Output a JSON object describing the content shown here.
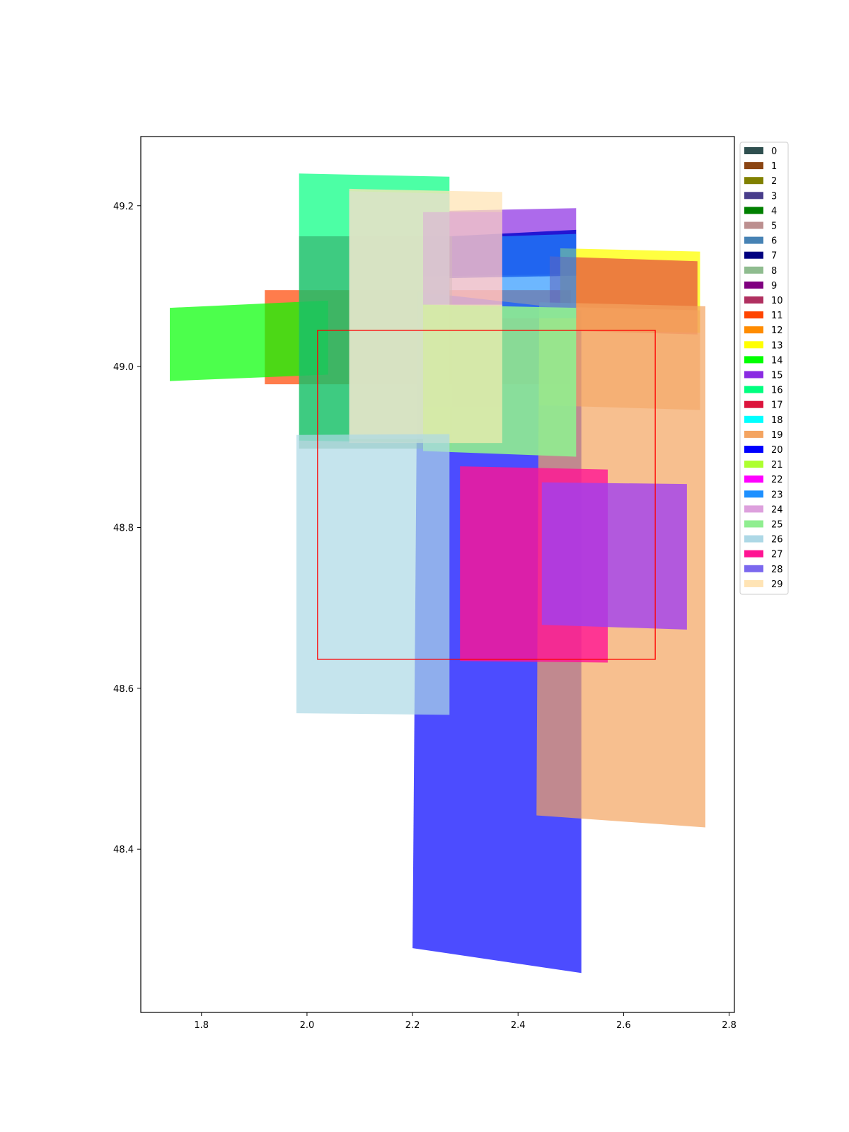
{
  "chart_data": {
    "type": "area",
    "title": "",
    "xlabel": "",
    "ylabel": "",
    "xlim": [
      1.685,
      2.81
    ],
    "ylim": [
      48.197,
      49.286
    ],
    "x_ticks": [
      "1.8",
      "2.0",
      "2.2",
      "2.4",
      "2.6",
      "2.8"
    ],
    "x_tick_values": [
      1.8,
      2.0,
      2.2,
      2.4,
      2.6,
      2.8
    ],
    "y_ticks": [
      "48.4",
      "48.6",
      "48.8",
      "49.0",
      "49.2"
    ],
    "y_tick_values": [
      48.4,
      48.6,
      48.8,
      49.0,
      49.2
    ],
    "grid": false,
    "legend_position": "outside-right-top",
    "legend": [
      {
        "label": "0",
        "color": "#2f4f4f"
      },
      {
        "label": "1",
        "color": "#8b4513"
      },
      {
        "label": "2",
        "color": "#808000"
      },
      {
        "label": "3",
        "color": "#483d8b"
      },
      {
        "label": "4",
        "color": "#008000"
      },
      {
        "label": "5",
        "color": "#bc8f8f"
      },
      {
        "label": "6",
        "color": "#4682b4"
      },
      {
        "label": "7",
        "color": "#000080"
      },
      {
        "label": "8",
        "color": "#8fbc8f"
      },
      {
        "label": "9",
        "color": "#800080"
      },
      {
        "label": "10",
        "color": "#b03060"
      },
      {
        "label": "11",
        "color": "#ff4500"
      },
      {
        "label": "12",
        "color": "#ff8c00"
      },
      {
        "label": "13",
        "color": "#ffff00"
      },
      {
        "label": "14",
        "color": "#00ff00"
      },
      {
        "label": "15",
        "color": "#8a2be2"
      },
      {
        "label": "16",
        "color": "#00ff7f"
      },
      {
        "label": "17",
        "color": "#dc143c"
      },
      {
        "label": "18",
        "color": "#00ffff"
      },
      {
        "label": "19",
        "color": "#f4a460"
      },
      {
        "label": "20",
        "color": "#0000ff"
      },
      {
        "label": "21",
        "color": "#adff2f"
      },
      {
        "label": "22",
        "color": "#ff00ff"
      },
      {
        "label": "23",
        "color": "#1e90ff"
      },
      {
        "label": "24",
        "color": "#dda0dd"
      },
      {
        "label": "25",
        "color": "#90ee90"
      },
      {
        "label": "26",
        "color": "#add8e6"
      },
      {
        "label": "27",
        "color": "#ff1493"
      },
      {
        "label": "28",
        "color": "#7b68ee"
      },
      {
        "label": "29",
        "color": "#ffe4b5"
      }
    ],
    "shapes": [
      {
        "name": "orange-red-block",
        "color": "#ff4500",
        "opacity": 0.7,
        "points": [
          [
            1.92,
            49.095
          ],
          [
            2.5,
            49.095
          ],
          [
            2.5,
            48.978
          ],
          [
            1.92,
            48.978
          ]
        ]
      },
      {
        "name": "green-quad",
        "color": "#00ff00",
        "opacity": 0.7,
        "points": [
          [
            1.74,
            49.073
          ],
          [
            2.04,
            49.082
          ],
          [
            2.04,
            48.99
          ],
          [
            1.74,
            48.982
          ]
        ]
      },
      {
        "name": "blue-tall-quad",
        "color": "#0000ff",
        "opacity": 0.7,
        "points": [
          [
            2.21,
            49.093
          ],
          [
            2.52,
            49.07
          ],
          [
            2.52,
            48.246
          ],
          [
            2.2,
            48.277
          ]
        ]
      },
      {
        "name": "purple-top",
        "color": "#8a2be2",
        "opacity": 0.7,
        "points": [
          [
            2.22,
            49.193
          ],
          [
            2.51,
            49.197
          ],
          [
            2.51,
            49.115
          ],
          [
            2.22,
            49.112
          ]
        ]
      },
      {
        "name": "navy-band",
        "color": "#0000cd",
        "opacity": 0.8,
        "points": [
          [
            2.27,
            49.162
          ],
          [
            2.51,
            49.17
          ],
          [
            2.51,
            49.113
          ],
          [
            2.27,
            49.11
          ]
        ]
      },
      {
        "name": "yellow-block",
        "color": "#ffff00",
        "opacity": 0.75,
        "points": [
          [
            2.48,
            49.147
          ],
          [
            2.745,
            49.143
          ],
          [
            2.745,
            49.042
          ],
          [
            2.48,
            49.045
          ]
        ]
      },
      {
        "name": "red-block",
        "color": "#dc143c",
        "opacity": 0.55,
        "points": [
          [
            2.46,
            49.137
          ],
          [
            2.74,
            49.131
          ],
          [
            2.74,
            49.04
          ],
          [
            2.46,
            49.045
          ]
        ]
      },
      {
        "name": "sandy-tall",
        "color": "#f4a460",
        "opacity": 0.7,
        "points": [
          [
            2.44,
            49.08
          ],
          [
            2.755,
            49.075
          ],
          [
            2.755,
            48.427
          ],
          [
            2.435,
            48.442
          ]
        ]
      },
      {
        "name": "sandy-mid",
        "color": "#f4a460",
        "opacity": 0.55,
        "points": [
          [
            2.44,
            49.075
          ],
          [
            2.745,
            49.07
          ],
          [
            2.745,
            48.946
          ],
          [
            2.44,
            48.952
          ]
        ]
      },
      {
        "name": "spring-green-big",
        "color": "#00ff7f",
        "opacity": 0.7,
        "points": [
          [
            1.985,
            49.24
          ],
          [
            2.27,
            49.236
          ],
          [
            2.27,
            48.905
          ],
          [
            1.985,
            48.908
          ]
        ]
      },
      {
        "name": "green-lower",
        "color": "#2e8b57",
        "opacity": 0.45,
        "points": [
          [
            1.985,
            49.162
          ],
          [
            2.275,
            49.162
          ],
          [
            2.275,
            48.898
          ],
          [
            1.985,
            48.898
          ]
        ]
      },
      {
        "name": "moccasin-top",
        "color": "#ffe4b5",
        "opacity": 0.75,
        "points": [
          [
            2.08,
            49.221
          ],
          [
            2.37,
            49.217
          ],
          [
            2.37,
            48.905
          ],
          [
            2.08,
            48.905
          ]
        ]
      },
      {
        "name": "light-mid",
        "color": "#d8e4c8",
        "opacity": 0.85,
        "points": [
          [
            2.08,
            49.218
          ],
          [
            2.27,
            49.215
          ],
          [
            2.27,
            48.91
          ],
          [
            2.08,
            48.91
          ]
        ]
      },
      {
        "name": "pink-plum",
        "color": "#dda0dd",
        "opacity": 0.45,
        "points": [
          [
            2.22,
            49.192
          ],
          [
            2.37,
            49.192
          ],
          [
            2.37,
            48.95
          ],
          [
            2.22,
            48.95
          ]
        ]
      },
      {
        "name": "sky-blue-block",
        "color": "#1e90ff",
        "opacity": 0.65,
        "points": [
          [
            2.37,
            49.162
          ],
          [
            2.51,
            49.165
          ],
          [
            2.51,
            49.06
          ],
          [
            2.37,
            49.06
          ]
        ]
      },
      {
        "name": "light-green-block",
        "color": "#90ee90",
        "opacity": 0.9,
        "points": [
          [
            2.22,
            49.077
          ],
          [
            2.51,
            49.073
          ],
          [
            2.51,
            48.888
          ],
          [
            2.22,
            48.895
          ]
        ]
      },
      {
        "name": "pale-yellow",
        "color": "#f0e8b0",
        "opacity": 0.7,
        "points": [
          [
            2.22,
            49.077
          ],
          [
            2.37,
            49.077
          ],
          [
            2.37,
            48.905
          ],
          [
            2.22,
            48.905
          ]
        ]
      },
      {
        "name": "light-blue-tall",
        "color": "#add8e6",
        "opacity": 0.7,
        "points": [
          [
            1.98,
            48.915
          ],
          [
            2.27,
            48.916
          ],
          [
            2.27,
            48.567
          ],
          [
            1.98,
            48.569
          ]
        ]
      },
      {
        "name": "deep-pink-block",
        "color": "#ff1493",
        "opacity": 0.8,
        "points": [
          [
            2.29,
            48.876
          ],
          [
            2.57,
            48.872
          ],
          [
            2.57,
            48.632
          ],
          [
            2.29,
            48.634
          ]
        ]
      },
      {
        "name": "violet-block",
        "color": "#a040f0",
        "opacity": 0.8,
        "points": [
          [
            2.445,
            48.856
          ],
          [
            2.72,
            48.854
          ],
          [
            2.72,
            48.673
          ],
          [
            2.445,
            48.679
          ]
        ]
      }
    ],
    "bbox_rect": {
      "name": "red-outline",
      "color": "#ff0000",
      "x0": 2.02,
      "y0": 48.636,
      "x1": 2.66,
      "y1": 49.045
    }
  }
}
